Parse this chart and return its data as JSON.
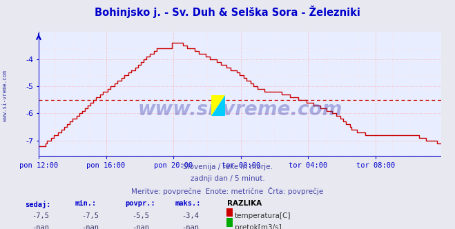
{
  "title": "Bohinjsko j. - Sv. Duh & Selška Sora - Železniki",
  "title_color": "#0000cc",
  "bg_color": "#e8e8f0",
  "plot_bg_color": "#e8eeff",
  "grid_color_major": "#ff9999",
  "grid_color_minor": "#ffdddd",
  "line_color": "#cc0000",
  "axis_color": "#0000cc",
  "ylim": [
    -7.6,
    -3.0
  ],
  "yticks": [
    -7,
    -6,
    -5,
    -4
  ],
  "xlabel_ticks": [
    "pon 12:00",
    "pon 16:00",
    "pon 20:00",
    "tor 00:00",
    "tor 04:00",
    "tor 08:00"
  ],
  "avg_line_y": -5.5,
  "avg_line_color": "#cc0000",
  "watermark": "www.si-vreme.com",
  "watermark_color": "#3333aa",
  "subtitle1": "Slovenija / reke in morje.",
  "subtitle2": "zadnji dan / 5 minut.",
  "subtitle3": "Meritve: povprečne  Enote: metrične  Črta: povprečje",
  "subtitle_color": "#4444aa",
  "legend_label1": "temperatura[C]",
  "legend_label2": "pretok[m3/s]",
  "legend_color1": "#cc0000",
  "legend_color2": "#00aa00",
  "stats_labels": [
    "sedaj:",
    "min.:",
    "povpr.:",
    "maks.:"
  ],
  "stats_color": "#0000cc",
  "stats_bold_label": "RAZLIKA",
  "stats_values_temp": [
    "-7,5",
    "-7,5",
    "-5,5",
    "-3,4"
  ],
  "stats_values_flow": [
    "-nan",
    "-nan",
    "-nan",
    "-nan"
  ],
  "side_label": "www.si-vreme.com",
  "side_label_color": "#4444aa",
  "n_points": 288,
  "xtick_positions": [
    0,
    48,
    96,
    144,
    192,
    240
  ]
}
